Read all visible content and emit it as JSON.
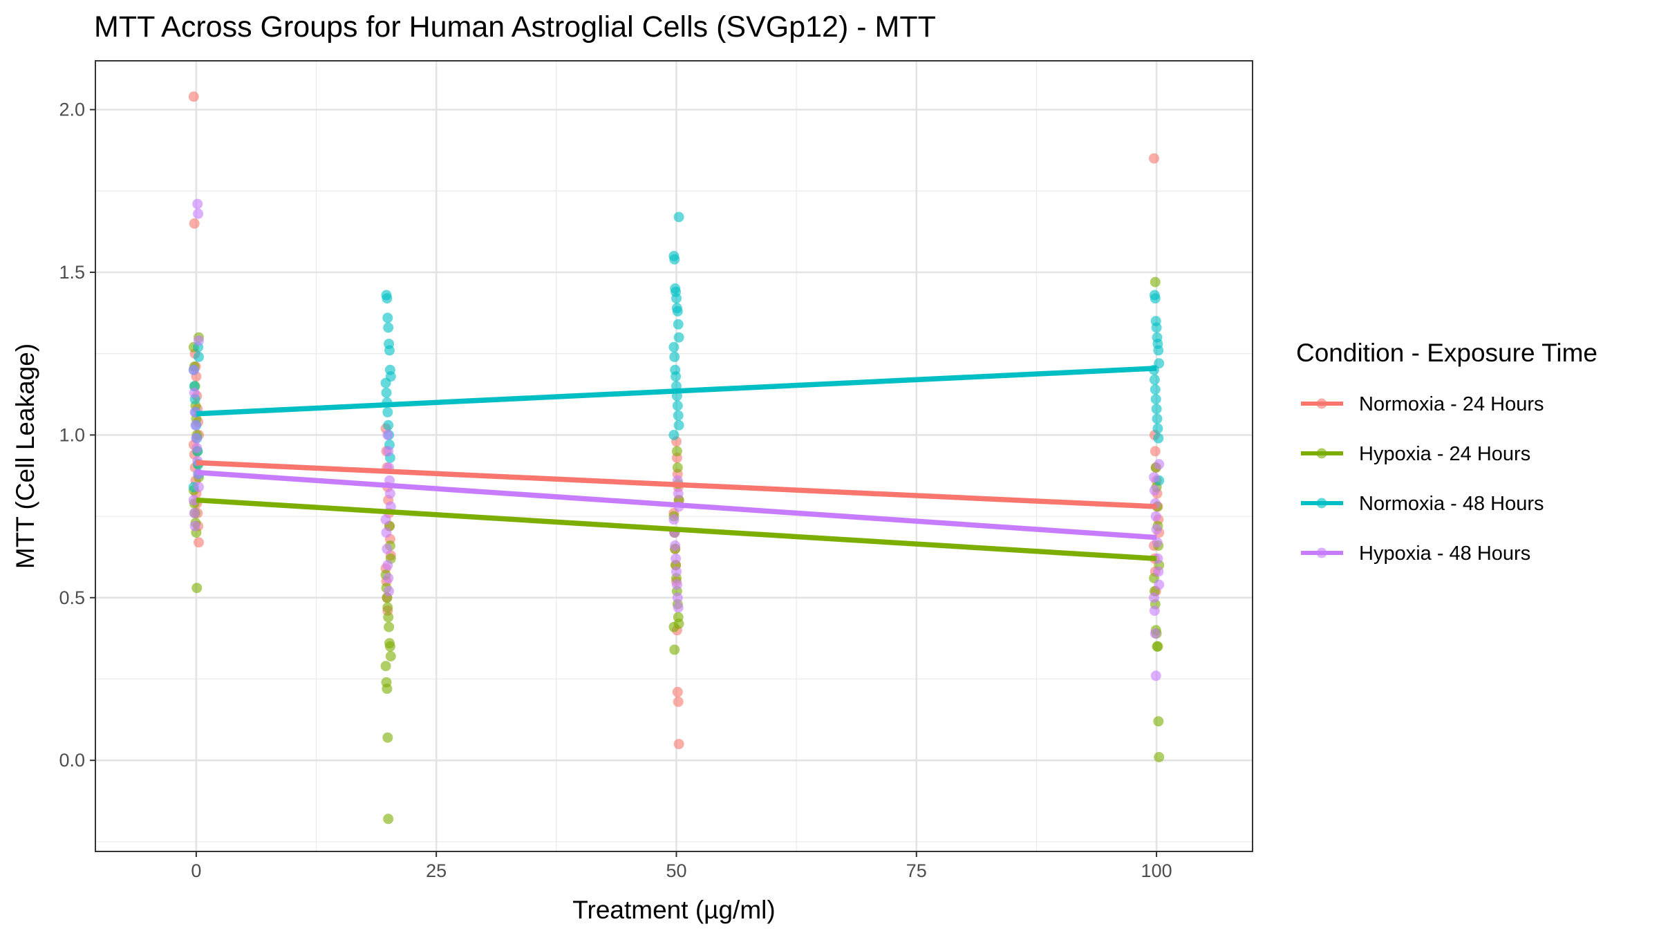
{
  "chart_data": {
    "type": "scatter",
    "title": "MTT Across Groups for Human Astroglial Cells (SVGp12) - MTT",
    "xlabel": "Treatment (µg/ml)",
    "ylabel": "MTT (Cell Leakage)",
    "xlim": [
      -10.5,
      110
    ],
    "ylim": [
      -0.28,
      2.15
    ],
    "x_ticks": [
      0,
      25,
      50,
      75,
      100
    ],
    "x_tick_labels": [
      "0",
      "25",
      "50",
      "75",
      "100"
    ],
    "y_ticks": [
      0.0,
      0.5,
      1.0,
      1.5,
      2.0
    ],
    "y_tick_labels": [
      "0.0",
      "0.5",
      "1.0",
      "1.5",
      "2.0"
    ],
    "grid": true,
    "legend": {
      "title": "Condition - Exposure Time",
      "position": "right"
    },
    "series": [
      {
        "name": "Normoxia - 24 Hours",
        "color": "#F8766D",
        "trend": [
          [
            0,
            0.915
          ],
          [
            100,
            0.78
          ]
        ],
        "points": [
          [
            0,
            2.04
          ],
          [
            0,
            1.65
          ],
          [
            0,
            1.25
          ],
          [
            0,
            1.21
          ],
          [
            0,
            1.18
          ],
          [
            0,
            1.12
          ],
          [
            0,
            1.08
          ],
          [
            0,
            1.04
          ],
          [
            0,
            1.0
          ],
          [
            0,
            0.97
          ],
          [
            0,
            0.94
          ],
          [
            0,
            0.9
          ],
          [
            0,
            0.86
          ],
          [
            0,
            0.82
          ],
          [
            0,
            0.79
          ],
          [
            0,
            0.76
          ],
          [
            0,
            0.72
          ],
          [
            0,
            0.67
          ],
          [
            20,
            1.02
          ],
          [
            20,
            0.95
          ],
          [
            20,
            0.9
          ],
          [
            20,
            0.84
          ],
          [
            20,
            0.8
          ],
          [
            20,
            0.76
          ],
          [
            20,
            0.72
          ],
          [
            20,
            0.68
          ],
          [
            20,
            0.63
          ],
          [
            20,
            0.59
          ],
          [
            20,
            0.55
          ],
          [
            20,
            0.5
          ],
          [
            20,
            0.46
          ],
          [
            50,
            0.98
          ],
          [
            50,
            0.93
          ],
          [
            50,
            0.88
          ],
          [
            50,
            0.84
          ],
          [
            50,
            0.8
          ],
          [
            50,
            0.76
          ],
          [
            50,
            0.7
          ],
          [
            50,
            0.65
          ],
          [
            50,
            0.6
          ],
          [
            50,
            0.55
          ],
          [
            50,
            0.4
          ],
          [
            50,
            0.21
          ],
          [
            50,
            0.18
          ],
          [
            50,
            0.05
          ],
          [
            100,
            1.85
          ],
          [
            100,
            1.0
          ],
          [
            100,
            0.95
          ],
          [
            100,
            0.9
          ],
          [
            100,
            0.86
          ],
          [
            100,
            0.82
          ],
          [
            100,
            0.78
          ],
          [
            100,
            0.74
          ],
          [
            100,
            0.7
          ],
          [
            100,
            0.66
          ],
          [
            100,
            0.62
          ],
          [
            100,
            0.58
          ],
          [
            100,
            0.52
          ]
        ]
      },
      {
        "name": "Hypoxia - 24 Hours",
        "color": "#7CAE00",
        "trend": [
          [
            0,
            0.8
          ],
          [
            100,
            0.62
          ]
        ],
        "points": [
          [
            0,
            1.3
          ],
          [
            0,
            1.27
          ],
          [
            0,
            1.21
          ],
          [
            0,
            1.15
          ],
          [
            0,
            1.09
          ],
          [
            0,
            1.05
          ],
          [
            0,
            1.0
          ],
          [
            0,
            0.95
          ],
          [
            0,
            0.91
          ],
          [
            0,
            0.87
          ],
          [
            0,
            0.83
          ],
          [
            0,
            0.79
          ],
          [
            0,
            0.76
          ],
          [
            0,
            0.73
          ],
          [
            0,
            0.7
          ],
          [
            0,
            0.53
          ],
          [
            20,
            0.72
          ],
          [
            20,
            0.66
          ],
          [
            20,
            0.62
          ],
          [
            20,
            0.57
          ],
          [
            20,
            0.53
          ],
          [
            20,
            0.5
          ],
          [
            20,
            0.47
          ],
          [
            20,
            0.44
          ],
          [
            20,
            0.41
          ],
          [
            20,
            0.36
          ],
          [
            20,
            0.35
          ],
          [
            20,
            0.32
          ],
          [
            20,
            0.29
          ],
          [
            20,
            0.24
          ],
          [
            20,
            0.22
          ],
          [
            20,
            0.07
          ],
          [
            20,
            -0.18
          ],
          [
            50,
            0.95
          ],
          [
            50,
            0.9
          ],
          [
            50,
            0.85
          ],
          [
            50,
            0.8
          ],
          [
            50,
            0.75
          ],
          [
            50,
            0.7
          ],
          [
            50,
            0.65
          ],
          [
            50,
            0.6
          ],
          [
            50,
            0.56
          ],
          [
            50,
            0.52
          ],
          [
            50,
            0.48
          ],
          [
            50,
            0.44
          ],
          [
            50,
            0.42
          ],
          [
            50,
            0.41
          ],
          [
            50,
            0.34
          ],
          [
            100,
            1.47
          ],
          [
            100,
            0.9
          ],
          [
            100,
            0.84
          ],
          [
            100,
            0.78
          ],
          [
            100,
            0.72
          ],
          [
            100,
            0.66
          ],
          [
            100,
            0.6
          ],
          [
            100,
            0.56
          ],
          [
            100,
            0.52
          ],
          [
            100,
            0.48
          ],
          [
            100,
            0.4
          ],
          [
            100,
            0.39
          ],
          [
            100,
            0.35
          ],
          [
            100,
            0.35
          ],
          [
            100,
            0.12
          ],
          [
            100,
            0.01
          ]
        ]
      },
      {
        "name": "Normoxia - 48 Hours",
        "color": "#00BFC4",
        "trend": [
          [
            0,
            1.065
          ],
          [
            100,
            1.205
          ]
        ],
        "points": [
          [
            0,
            1.27
          ],
          [
            0,
            1.24
          ],
          [
            0,
            1.2
          ],
          [
            0,
            1.15
          ],
          [
            0,
            1.11
          ],
          [
            0,
            1.07
          ],
          [
            0,
            1.03
          ],
          [
            0,
            0.99
          ],
          [
            0,
            0.95
          ],
          [
            0,
            0.91
          ],
          [
            0,
            0.88
          ],
          [
            0,
            0.84
          ],
          [
            20,
            1.43
          ],
          [
            20,
            1.42
          ],
          [
            20,
            1.36
          ],
          [
            20,
            1.33
          ],
          [
            20,
            1.28
          ],
          [
            20,
            1.26
          ],
          [
            20,
            1.2
          ],
          [
            20,
            1.18
          ],
          [
            20,
            1.16
          ],
          [
            20,
            1.13
          ],
          [
            20,
            1.1
          ],
          [
            20,
            1.07
          ],
          [
            20,
            1.03
          ],
          [
            20,
            1.0
          ],
          [
            20,
            0.97
          ],
          [
            20,
            0.93
          ],
          [
            50,
            1.67
          ],
          [
            50,
            1.55
          ],
          [
            50,
            1.54
          ],
          [
            50,
            1.45
          ],
          [
            50,
            1.44
          ],
          [
            50,
            1.42
          ],
          [
            50,
            1.39
          ],
          [
            50,
            1.38
          ],
          [
            50,
            1.34
          ],
          [
            50,
            1.3
          ],
          [
            50,
            1.27
          ],
          [
            50,
            1.24
          ],
          [
            50,
            1.2
          ],
          [
            50,
            1.18
          ],
          [
            50,
            1.15
          ],
          [
            50,
            1.12
          ],
          [
            50,
            1.09
          ],
          [
            50,
            1.06
          ],
          [
            50,
            1.03
          ],
          [
            50,
            1.0
          ],
          [
            100,
            1.43
          ],
          [
            100,
            1.42
          ],
          [
            100,
            1.35
          ],
          [
            100,
            1.33
          ],
          [
            100,
            1.3
          ],
          [
            100,
            1.28
          ],
          [
            100,
            1.26
          ],
          [
            100,
            1.22
          ],
          [
            100,
            1.2
          ],
          [
            100,
            1.17
          ],
          [
            100,
            1.14
          ],
          [
            100,
            1.11
          ],
          [
            100,
            1.08
          ],
          [
            100,
            1.05
          ],
          [
            100,
            1.02
          ],
          [
            100,
            0.99
          ],
          [
            100,
            0.86
          ]
        ]
      },
      {
        "name": "Hypoxia - 48 Hours",
        "color": "#C77CFF",
        "trend": [
          [
            0,
            0.885
          ],
          [
            100,
            0.685
          ]
        ],
        "points": [
          [
            0,
            1.71
          ],
          [
            0,
            1.68
          ],
          [
            0,
            1.29
          ],
          [
            0,
            1.2
          ],
          [
            0,
            1.13
          ],
          [
            0,
            1.07
          ],
          [
            0,
            1.03
          ],
          [
            0,
            0.99
          ],
          [
            0,
            0.96
          ],
          [
            0,
            0.92
          ],
          [
            0,
            0.88
          ],
          [
            0,
            0.84
          ],
          [
            0,
            0.8
          ],
          [
            0,
            0.76
          ],
          [
            0,
            0.72
          ],
          [
            20,
            1.0
          ],
          [
            20,
            0.95
          ],
          [
            20,
            0.9
          ],
          [
            20,
            0.86
          ],
          [
            20,
            0.82
          ],
          [
            20,
            0.78
          ],
          [
            20,
            0.74
          ],
          [
            20,
            0.7
          ],
          [
            20,
            0.65
          ],
          [
            20,
            0.6
          ],
          [
            20,
            0.56
          ],
          [
            20,
            0.52
          ],
          [
            50,
            0.86
          ],
          [
            50,
            0.82
          ],
          [
            50,
            0.78
          ],
          [
            50,
            0.74
          ],
          [
            50,
            0.7
          ],
          [
            50,
            0.66
          ],
          [
            50,
            0.62
          ],
          [
            50,
            0.58
          ],
          [
            50,
            0.54
          ],
          [
            50,
            0.5
          ],
          [
            50,
            0.47
          ],
          [
            100,
            0.91
          ],
          [
            100,
            0.87
          ],
          [
            100,
            0.83
          ],
          [
            100,
            0.79
          ],
          [
            100,
            0.75
          ],
          [
            100,
            0.71
          ],
          [
            100,
            0.67
          ],
          [
            100,
            0.62
          ],
          [
            100,
            0.58
          ],
          [
            100,
            0.54
          ],
          [
            100,
            0.5
          ],
          [
            100,
            0.46
          ],
          [
            100,
            0.39
          ],
          [
            100,
            0.26
          ]
        ]
      }
    ]
  }
}
